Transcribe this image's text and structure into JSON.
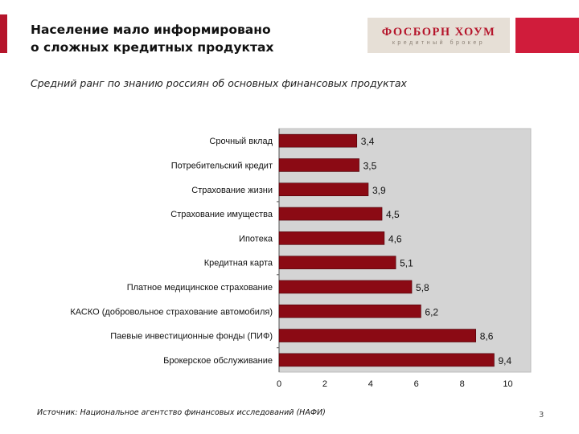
{
  "header": {
    "title_line1": "Население мало информировано",
    "title_line2": "о сложных кредитных продуктах",
    "logo_name": "ФОСБОРН ХОУМ",
    "logo_tagline": "кредитный брокер"
  },
  "subtitle": "Средний ранг по знанию россиян об основных финансовых продуктах",
  "footer": {
    "source": "Источник: Национальное агентство финансовых исследований (НАФИ)",
    "page_number": "3"
  },
  "colors": {
    "bar_fill": "#8b0a14",
    "plot_background": "#d4d4d4",
    "brand_red": "#b5152b"
  },
  "chart_data": {
    "type": "bar",
    "orientation": "horizontal",
    "categories": [
      "Срочный вклад",
      "Потребительский кредит",
      "Страхование жизни",
      "Страхование имущества",
      "Ипотека",
      "Кредитная карта",
      "Платное медицинское страхование",
      "КАСКО (добровольное страхование автомобиля)",
      "Паевые инвестиционные фонды (ПИФ)",
      "Брокерское обслуживание"
    ],
    "values": [
      3.4,
      3.5,
      3.9,
      4.5,
      4.6,
      5.1,
      5.8,
      6.2,
      8.6,
      9.4
    ],
    "value_labels": [
      "3,4",
      "3,5",
      "3,9",
      "4,5",
      "4,6",
      "5,1",
      "5,8",
      "6,2",
      "8,6",
      "9,4"
    ],
    "xlim": [
      0,
      11
    ],
    "xticks": [
      0,
      2,
      4,
      6,
      8,
      10
    ],
    "xtick_labels": [
      "0",
      "2",
      "4",
      "6",
      "8",
      "10"
    ],
    "grid": false,
    "legend": "none"
  }
}
